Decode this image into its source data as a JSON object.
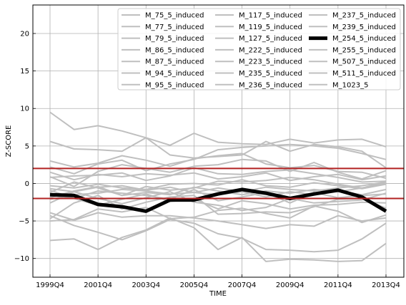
{
  "chart_data": {
    "type": "line",
    "title": "",
    "xlabel": "TIME",
    "ylabel": "Z-SCORE",
    "x": [
      "1999Q4",
      "2000Q4",
      "2001Q4",
      "2002Q4",
      "2003Q4",
      "2004Q4",
      "2005Q4",
      "2006Q4",
      "2007Q4",
      "2008Q4",
      "2009Q4",
      "2010Q4",
      "2011Q4",
      "2012Q4",
      "2013Q4"
    ],
    "x_tick_labels": [
      "1999Q4",
      "2001Q4",
      "2003Q4",
      "2005Q4",
      "2007Q4",
      "2009Q4",
      "2011Q4",
      "2013Q4"
    ],
    "ylim": [
      -12.5,
      23.8
    ],
    "y_ticks": [
      -10,
      -5,
      0,
      5,
      10,
      15,
      20
    ],
    "y_tick_labels": [
      "−10",
      "−5",
      "0",
      "5",
      "10",
      "15",
      "20"
    ],
    "grid": true,
    "legend_position": "top-right",
    "legend_columns": 3,
    "threshold_lines": [
      2,
      -2
    ],
    "threshold_color": "#b22222",
    "background_series_color": "#bfbfbf",
    "highlight_color": "#000000",
    "series": [
      {
        "name": "M_75_5_induced",
        "values": [
          9.5,
          7.2,
          7.7,
          7.0,
          6.1,
          5.1,
          6.7,
          5.5,
          5.3,
          5.2,
          5.9,
          5.4,
          5.8,
          5.9,
          4.9
        ]
      },
      {
        "name": "M_77_5_induced",
        "values": [
          5.6,
          4.6,
          4.5,
          4.3,
          6.1,
          3.8,
          3.4,
          3.6,
          3.8,
          5.6,
          4.3,
          5.2,
          4.9,
          4.3,
          2.1
        ]
      },
      {
        "name": "M_79_5_induced",
        "values": [
          3.0,
          2.2,
          2.7,
          3.7,
          3.1,
          2.3,
          3.3,
          3.7,
          4.0,
          2.6,
          2.1,
          2.4,
          1.6,
          1.5,
          0.7
        ]
      },
      {
        "name": "M_86_5_induced",
        "values": [
          2.2,
          1.3,
          2.6,
          3.1,
          1.7,
          2.6,
          3.2,
          4.5,
          4.8,
          5.0,
          5.2,
          5.0,
          4.7,
          4.0,
          3.2
        ]
      },
      {
        "name": "M_87_5_induced",
        "values": [
          1.5,
          0.5,
          1.2,
          0.9,
          1.3,
          1.1,
          1.4,
          0.6,
          0.9,
          1.4,
          0.4,
          0.9,
          1.2,
          0.5,
          1.0
        ]
      },
      {
        "name": "M_94_5_induced",
        "values": [
          0.8,
          1.0,
          1.1,
          1.4,
          0.4,
          1.0,
          2.1,
          1.3,
          1.2,
          1.6,
          1.8,
          1.3,
          0.8,
          0.2,
          0.3
        ]
      },
      {
        "name": "M_95_5_induced",
        "values": [
          -0.3,
          -0.6,
          -0.1,
          -0.6,
          -0.8,
          -0.1,
          0.0,
          -0.2,
          0.5,
          -0.3,
          -0.5,
          0.1,
          -0.3,
          -0.7,
          -0.1
        ]
      },
      {
        "name": "M_117_5_induced",
        "values": [
          -0.7,
          -1.1,
          -0.5,
          -0.3,
          -0.9,
          -0.5,
          -1.2,
          -0.6,
          -1.1,
          -0.5,
          -0.8,
          -1.0,
          -0.6,
          -0.3,
          0.2
        ]
      },
      {
        "name": "M_119_5_induced",
        "values": [
          -1.2,
          0.2,
          -0.6,
          -1.6,
          -1.2,
          -1.5,
          -0.5,
          -1.0,
          -1.5,
          -1.0,
          -1.3,
          -0.8,
          -1.1,
          -0.6,
          0.0
        ]
      },
      {
        "name": "M_127_5_induced",
        "values": [
          -2.1,
          -1.5,
          -1.3,
          -0.8,
          -1.0,
          -1.4,
          -1.2,
          -1.5,
          -1.1,
          -1.8,
          -1.1,
          -1.5,
          -1.0,
          -1.5,
          -0.8
        ]
      },
      {
        "name": "M_222_5_induced",
        "values": [
          -1.5,
          -2.0,
          -1.0,
          -1.3,
          -1.6,
          -2.1,
          -0.8,
          -2.3,
          -1.8,
          -1.2,
          -2.6,
          -1.2,
          -1.9,
          -1.6,
          -1.4
        ]
      },
      {
        "name": "M_223_5_induced",
        "values": [
          -2.6,
          -1.1,
          -2.0,
          -2.7,
          -1.9,
          -1.1,
          -2.5,
          -2.9,
          -3.6,
          -3.2,
          -2.0,
          -2.6,
          -2.4,
          -2.2,
          -1.3
        ]
      },
      {
        "name": "M_235_5_induced",
        "values": [
          -0.9,
          -2.0,
          -2.9,
          -2.1,
          -1.4,
          -2.4,
          -2.1,
          -3.4,
          -2.3,
          -2.7,
          -3.4,
          -2.9,
          -2.8,
          -2.5,
          -2.6
        ]
      },
      {
        "name": "M_236_5_induced",
        "values": [
          -4.7,
          -2.6,
          -1.6,
          -3.4,
          -2.5,
          -1.8,
          -1.6,
          -4.1,
          -4.0,
          -3.8,
          -3.9,
          -3.1,
          -2.1,
          -2.0,
          -3.3
        ]
      },
      {
        "name": "M_237_5_induced",
        "values": [
          -3.9,
          -4.9,
          -3.9,
          -4.5,
          -4.3,
          -4.3,
          -4.6,
          -5.0,
          -5.5,
          -6.0,
          -5.5,
          -5.7,
          -4.3,
          -5.0,
          -4.6
        ]
      },
      {
        "name": "M_239_5_induced",
        "values": [
          -4.3,
          -5.6,
          -6.5,
          -7.5,
          -6.3,
          -4.8,
          -5.3,
          -6.7,
          -7.3,
          -8.8,
          -8.9,
          -9.1,
          -8.9,
          -7.4,
          -5.3
        ]
      },
      {
        "name": "M_254_5_induced",
        "values": [
          -1.5,
          -1.6,
          -2.8,
          -3.1,
          -3.7,
          -2.2,
          -2.2,
          -1.4,
          -0.8,
          -1.3,
          -2.0,
          -1.4,
          -0.9,
          -1.8,
          -3.7
        ]
      },
      {
        "name": "M_255_5_induced",
        "values": [
          -7.6,
          -7.4,
          -8.8,
          -7.2,
          -6.2,
          -4.6,
          -5.9,
          -8.8,
          -7.2,
          -10.4,
          -10.1,
          -10.2,
          -10.4,
          -10.3,
          -8.0
        ]
      },
      {
        "name": "M_507_5_induced",
        "values": [
          -5.0,
          -4.8,
          -3.4,
          -3.8,
          -3.2,
          -4.7,
          -4.5,
          -3.6,
          -3.3,
          -4.0,
          -4.6,
          -3.0,
          -3.7,
          -5.2,
          -4.2
        ]
      },
      {
        "name": "M_511_5_induced",
        "values": [
          -1.9,
          -1.0,
          -0.4,
          -1.6,
          -0.4,
          -0.9,
          -0.6,
          0.3,
          0.2,
          0.4,
          0.8,
          0.5,
          -0.1,
          -0.6,
          0.2
        ]
      },
      {
        "name": "M_1023_5",
        "values": [
          0.9,
          -0.4,
          1.6,
          2.5,
          2.0,
          1.5,
          2.3,
          2.5,
          3.2,
          3.0,
          1.6,
          2.8,
          1.5,
          0.6,
          1.7
        ]
      }
    ],
    "highlight_series": "M_254_5_induced"
  }
}
